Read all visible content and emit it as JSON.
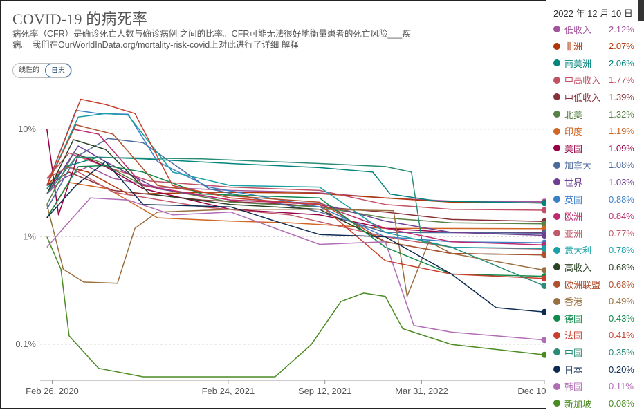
{
  "title": "COVID-19 的病死率",
  "subtitle": "病死率（CFR）是确诊死亡人数与确诊病例 之间的比率。CFR可能无法很好地衡量患者的死亡风险___疾病。 我们在OurWorldInData.org/mortality-risk-covid上对此进行了详细 解释",
  "scale_toggle": {
    "linear_label": "线性的",
    "log_label": "日志",
    "selected": "log"
  },
  "legend_date": "2022 年 12 月 10 日",
  "chart_data": {
    "type": "line",
    "y_scale": "log",
    "ylim": [
      0.05,
      25
    ],
    "y_ticks": [
      {
        "value": 10,
        "label": "10%"
      },
      {
        "value": 1,
        "label": "1%"
      },
      {
        "value": 0.1,
        "label": "0.1%"
      }
    ],
    "x_range": [
      "2020-02-01",
      "2022-12-10"
    ],
    "x_ticks": [
      {
        "value": "2020-02-26",
        "label": "Feb 26, 2020"
      },
      {
        "value": "2021-02-24",
        "label": "Feb 24, 2021"
      },
      {
        "value": "2021-09-12",
        "label": "Sep 12, 2021"
      },
      {
        "value": "2022-03-31",
        "label": "Mar 31, 2022"
      },
      {
        "value": "2022-12-10",
        "label": "Dec 10, 2022"
      }
    ],
    "grid": true,
    "series": [
      {
        "name": "低收入",
        "value_label": "2.12%",
        "color": "#a2559c",
        "points": [
          [
            "2020-02-15",
            2.5
          ],
          [
            "2020-03-20",
            3.5
          ],
          [
            "2020-05-10",
            4.5
          ],
          [
            "2020-07-01",
            3.5
          ],
          [
            "2020-10-01",
            2.9
          ],
          [
            "2021-03-01",
            2.7
          ],
          [
            "2021-08-15",
            2.6
          ],
          [
            "2022-01-15",
            2.3
          ],
          [
            "2022-06-01",
            2.15
          ],
          [
            "2022-12-10",
            2.12
          ]
        ]
      },
      {
        "name": "非洲",
        "value_label": "2.07%",
        "color": "#b13507",
        "points": [
          [
            "2020-02-15",
            3.0
          ],
          [
            "2020-03-25",
            4.5
          ],
          [
            "2020-05-10",
            4.0
          ],
          [
            "2020-08-01",
            2.5
          ],
          [
            "2021-02-01",
            2.6
          ],
          [
            "2021-08-15",
            2.55
          ],
          [
            "2022-01-15",
            2.3
          ],
          [
            "2022-06-01",
            2.1
          ],
          [
            "2022-12-10",
            2.07
          ]
        ]
      },
      {
        "name": "南美洲",
        "value_label": "2.06%",
        "color": "#00847e",
        "points": [
          [
            "2020-02-15",
            2.8
          ],
          [
            "2020-03-25",
            4.5
          ],
          [
            "2020-06-01",
            5.5
          ],
          [
            "2020-09-01",
            5.3
          ],
          [
            "2021-03-01",
            4.8
          ],
          [
            "2021-09-01",
            4.4
          ],
          [
            "2021-12-20",
            4.0
          ],
          [
            "2022-01-25",
            2.5
          ],
          [
            "2022-05-01",
            2.15
          ],
          [
            "2022-12-10",
            2.06
          ]
        ]
      },
      {
        "name": "中高收入",
        "value_label": "1.77%",
        "color": "#c15065",
        "points": [
          [
            "2020-02-15",
            3.5
          ],
          [
            "2020-04-01",
            6.0
          ],
          [
            "2020-06-15",
            4.5
          ],
          [
            "2020-09-15",
            3.3
          ],
          [
            "2021-03-01",
            2.9
          ],
          [
            "2021-09-01",
            2.7
          ],
          [
            "2022-01-15",
            2.0
          ],
          [
            "2022-06-01",
            1.8
          ],
          [
            "2022-12-10",
            1.77
          ]
        ]
      },
      {
        "name": "中低收入",
        "value_label": "1.39%",
        "color": "#883039",
        "points": [
          [
            "2020-02-15",
            3.0
          ],
          [
            "2020-04-01",
            4.0
          ],
          [
            "2020-07-01",
            2.7
          ],
          [
            "2021-01-01",
            2.2
          ],
          [
            "2021-07-01",
            2.0
          ],
          [
            "2022-01-15",
            1.7
          ],
          [
            "2022-06-01",
            1.45
          ],
          [
            "2022-12-10",
            1.39
          ]
        ]
      },
      {
        "name": "北美",
        "value_label": "1.32%",
        "color": "#578145",
        "points": [
          [
            "2020-02-15",
            2.0
          ],
          [
            "2020-04-10",
            6.0
          ],
          [
            "2020-06-01",
            5.0
          ],
          [
            "2020-09-01",
            3.0
          ],
          [
            "2021-03-01",
            2.1
          ],
          [
            "2021-09-01",
            1.9
          ],
          [
            "2022-01-15",
            1.5
          ],
          [
            "2022-06-01",
            1.35
          ],
          [
            "2022-12-10",
            1.32
          ]
        ]
      },
      {
        "name": "印度",
        "value_label": "1.19%",
        "color": "#d06625",
        "points": [
          [
            "2020-02-15",
            1.5
          ],
          [
            "2020-04-01",
            3.2
          ],
          [
            "2020-06-20",
            2.8
          ],
          [
            "2020-10-01",
            1.5
          ],
          [
            "2021-03-01",
            1.4
          ],
          [
            "2021-07-01",
            1.35
          ],
          [
            "2022-01-15",
            1.2
          ],
          [
            "2022-12-10",
            1.19
          ]
        ]
      },
      {
        "name": "美国",
        "value_label": "1.09%",
        "color": "#970046",
        "points": [
          [
            "2020-02-15",
            10.0
          ],
          [
            "2020-03-10",
            1.6
          ],
          [
            "2020-04-20",
            5.8
          ],
          [
            "2020-06-15",
            4.5
          ],
          [
            "2020-09-01",
            2.8
          ],
          [
            "2021-03-01",
            1.8
          ],
          [
            "2021-09-01",
            1.6
          ],
          [
            "2022-01-15",
            1.2
          ],
          [
            "2022-06-01",
            1.1
          ],
          [
            "2022-12-10",
            1.09
          ]
        ]
      },
      {
        "name": "加拿大",
        "value_label": "1.08%",
        "color": "#4c6a9c",
        "points": [
          [
            "2020-02-15",
            1.8
          ],
          [
            "2020-04-15",
            5.5
          ],
          [
            "2020-06-20",
            8.2
          ],
          [
            "2020-09-01",
            7.5
          ],
          [
            "2021-01-15",
            2.8
          ],
          [
            "2021-09-01",
            1.7
          ],
          [
            "2022-01-15",
            1.1
          ],
          [
            "2022-12-10",
            1.08
          ]
        ]
      },
      {
        "name": "世界",
        "value_label": "1.03%",
        "color": "#6d3e91",
        "points": [
          [
            "2020-02-15",
            2.5
          ],
          [
            "2020-04-20",
            7.0
          ],
          [
            "2020-06-15",
            5.0
          ],
          [
            "2020-10-01",
            2.8
          ],
          [
            "2021-03-01",
            2.2
          ],
          [
            "2021-09-01",
            2.05
          ],
          [
            "2022-01-15",
            1.4
          ],
          [
            "2022-06-01",
            1.1
          ],
          [
            "2022-12-10",
            1.03
          ]
        ]
      },
      {
        "name": "英国",
        "value_label": "0.88%",
        "color": "#3c7fc9",
        "points": [
          [
            "2020-02-15",
            3.0
          ],
          [
            "2020-04-15",
            15.0
          ],
          [
            "2020-06-01",
            14.0
          ],
          [
            "2020-08-01",
            13.8
          ],
          [
            "2020-10-01",
            5.0
          ],
          [
            "2021-01-15",
            2.9
          ],
          [
            "2021-09-01",
            1.9
          ],
          [
            "2022-01-15",
            1.0
          ],
          [
            "2022-06-01",
            0.9
          ],
          [
            "2022-12-10",
            0.88
          ]
        ]
      },
      {
        "name": "欧洲",
        "value_label": "0.84%",
        "color": "#be2a6e",
        "points": [
          [
            "2020-02-15",
            3.0
          ],
          [
            "2020-04-10",
            10.0
          ],
          [
            "2020-06-01",
            9.0
          ],
          [
            "2020-09-01",
            3.0
          ],
          [
            "2021-03-01",
            2.2
          ],
          [
            "2021-09-01",
            2.0
          ],
          [
            "2022-01-15",
            1.2
          ],
          [
            "2022-06-01",
            0.9
          ],
          [
            "2022-12-10",
            0.84
          ]
        ]
      },
      {
        "name": "亚洲",
        "value_label": "0.77%",
        "color": "#c05a6a",
        "points": [
          [
            "2020-02-15",
            3.5
          ],
          [
            "2020-04-01",
            4.5
          ],
          [
            "2020-07-01",
            2.6
          ],
          [
            "2021-01-01",
            1.9
          ],
          [
            "2021-07-01",
            1.6
          ],
          [
            "2022-01-15",
            1.0
          ],
          [
            "2022-06-01",
            0.8
          ],
          [
            "2022-12-10",
            0.77
          ]
        ]
      },
      {
        "name": "意大利",
        "value_label": "0.78%",
        "color": "#18a0a4",
        "points": [
          [
            "2020-02-15",
            3.0
          ],
          [
            "2020-04-20",
            13.0
          ],
          [
            "2020-06-15",
            14.0
          ],
          [
            "2020-08-01",
            13.5
          ],
          [
            "2020-11-01",
            4.0
          ],
          [
            "2021-03-01",
            3.0
          ],
          [
            "2021-09-01",
            2.9
          ],
          [
            "2022-01-15",
            1.1
          ],
          [
            "2022-06-01",
            0.8
          ],
          [
            "2022-12-10",
            0.78
          ]
        ]
      },
      {
        "name": "高收入",
        "value_label": "0.68%",
        "color": "#2b4224",
        "points": [
          [
            "2020-02-15",
            2.5
          ],
          [
            "2020-04-10",
            8.0
          ],
          [
            "2020-06-15",
            6.5
          ],
          [
            "2020-09-15",
            2.5
          ],
          [
            "2021-03-01",
            2.0
          ],
          [
            "2021-09-01",
            1.8
          ],
          [
            "2022-01-15",
            0.9
          ],
          [
            "2022-06-01",
            0.7
          ],
          [
            "2022-12-10",
            0.68
          ]
        ]
      },
      {
        "name": "欧洲联盟",
        "value_label": "0.68%",
        "color": "#b1502d",
        "points": [
          [
            "2020-02-15",
            3.0
          ],
          [
            "2020-04-15",
            11.0
          ],
          [
            "2020-07-01",
            9.0
          ],
          [
            "2020-10-01",
            3.0
          ],
          [
            "2021-03-01",
            2.4
          ],
          [
            "2021-09-01",
            2.1
          ],
          [
            "2022-01-15",
            0.9
          ],
          [
            "2022-06-01",
            0.7
          ],
          [
            "2022-12-10",
            0.68
          ]
        ]
      },
      {
        "name": "香港",
        "value_label": "0.49%",
        "color": "#9a6f3f",
        "points": [
          [
            "2020-02-15",
            2.0
          ],
          [
            "2020-03-20",
            0.5
          ],
          [
            "2020-05-01",
            0.38
          ],
          [
            "2020-07-10",
            0.37
          ],
          [
            "2020-08-15",
            1.2
          ],
          [
            "2020-10-01",
            1.7
          ],
          [
            "2021-03-01",
            1.8
          ],
          [
            "2021-09-01",
            1.8
          ],
          [
            "2022-02-01",
            1.75
          ],
          [
            "2022-03-01",
            0.28
          ],
          [
            "2022-04-15",
            0.9
          ],
          [
            "2022-06-01",
            0.7
          ],
          [
            "2022-12-10",
            0.49
          ]
        ]
      },
      {
        "name": "德国",
        "value_label": "0.43%",
        "color": "#11894d",
        "points": [
          [
            "2020-02-15",
            1.5
          ],
          [
            "2020-04-20",
            4.5
          ],
          [
            "2020-06-15",
            4.6
          ],
          [
            "2020-09-01",
            4.0
          ],
          [
            "2021-01-01",
            2.5
          ],
          [
            "2021-09-01",
            2.3
          ],
          [
            "2022-01-15",
            0.8
          ],
          [
            "2022-06-01",
            0.45
          ],
          [
            "2022-12-10",
            0.43
          ]
        ]
      },
      {
        "name": "法国",
        "value_label": "0.41%",
        "color": "#c93e2c",
        "points": [
          [
            "2020-02-15",
            3.0
          ],
          [
            "2020-04-25",
            19.0
          ],
          [
            "2020-06-15",
            17.0
          ],
          [
            "2020-08-15",
            14.0
          ],
          [
            "2020-11-01",
            3.0
          ],
          [
            "2021-03-01",
            2.3
          ],
          [
            "2021-09-01",
            2.0
          ],
          [
            "2022-01-15",
            0.6
          ],
          [
            "2022-06-01",
            0.45
          ],
          [
            "2022-12-10",
            0.41
          ]
        ]
      },
      {
        "name": "中国",
        "value_label": "0.35%",
        "color": "#2a8c76",
        "points": [
          [
            "2020-02-15",
            2.5
          ],
          [
            "2020-04-15",
            5.5
          ],
          [
            "2021-01-01",
            5.3
          ],
          [
            "2021-09-01",
            4.8
          ],
          [
            "2022-01-15",
            4.5
          ],
          [
            "2022-03-10",
            4.0
          ],
          [
            "2022-04-01",
            0.9
          ],
          [
            "2022-06-01",
            0.8
          ],
          [
            "2022-12-10",
            0.35
          ]
        ]
      },
      {
        "name": "日本",
        "value_label": "0.20%",
        "color": "#0c2b52",
        "points": [
          [
            "2020-02-15",
            1.5
          ],
          [
            "2020-04-15",
            3.0
          ],
          [
            "2020-06-15",
            5.0
          ],
          [
            "2020-09-01",
            2.0
          ],
          [
            "2021-03-01",
            1.9
          ],
          [
            "2021-06-01",
            1.4
          ],
          [
            "2021-09-01",
            1.05
          ],
          [
            "2022-01-15",
            1.0
          ],
          [
            "2022-06-01",
            0.45
          ],
          [
            "2022-09-01",
            0.22
          ],
          [
            "2022-12-10",
            0.2
          ]
        ]
      },
      {
        "name": "韩国",
        "value_label": "0.11%",
        "color": "#b16cb6",
        "points": [
          [
            "2020-02-15",
            0.8
          ],
          [
            "2020-03-20",
            1.2
          ],
          [
            "2020-05-15",
            2.3
          ],
          [
            "2020-08-01",
            2.2
          ],
          [
            "2020-11-01",
            1.6
          ],
          [
            "2021-03-01",
            1.7
          ],
          [
            "2021-09-01",
            0.85
          ],
          [
            "2022-01-15",
            0.9
          ],
          [
            "2022-03-15",
            0.15
          ],
          [
            "2022-06-01",
            0.13
          ],
          [
            "2022-12-10",
            0.11
          ]
        ]
      },
      {
        "name": "新加坡",
        "value_label": "0.08%",
        "color": "#4a8b22",
        "points": [
          [
            "2020-02-15",
            1.0
          ],
          [
            "2020-03-15",
            0.5
          ],
          [
            "2020-04-01",
            0.12
          ],
          [
            "2020-06-01",
            0.06
          ],
          [
            "2020-09-01",
            0.05
          ],
          [
            "2021-03-01",
            0.05
          ],
          [
            "2021-06-01",
            0.05
          ],
          [
            "2021-08-15",
            0.1
          ],
          [
            "2021-10-15",
            0.25
          ],
          [
            "2021-12-01",
            0.3
          ],
          [
            "2022-01-15",
            0.28
          ],
          [
            "2022-02-20",
            0.14
          ],
          [
            "2022-06-01",
            0.1
          ],
          [
            "2022-12-10",
            0.08
          ]
        ]
      }
    ]
  }
}
